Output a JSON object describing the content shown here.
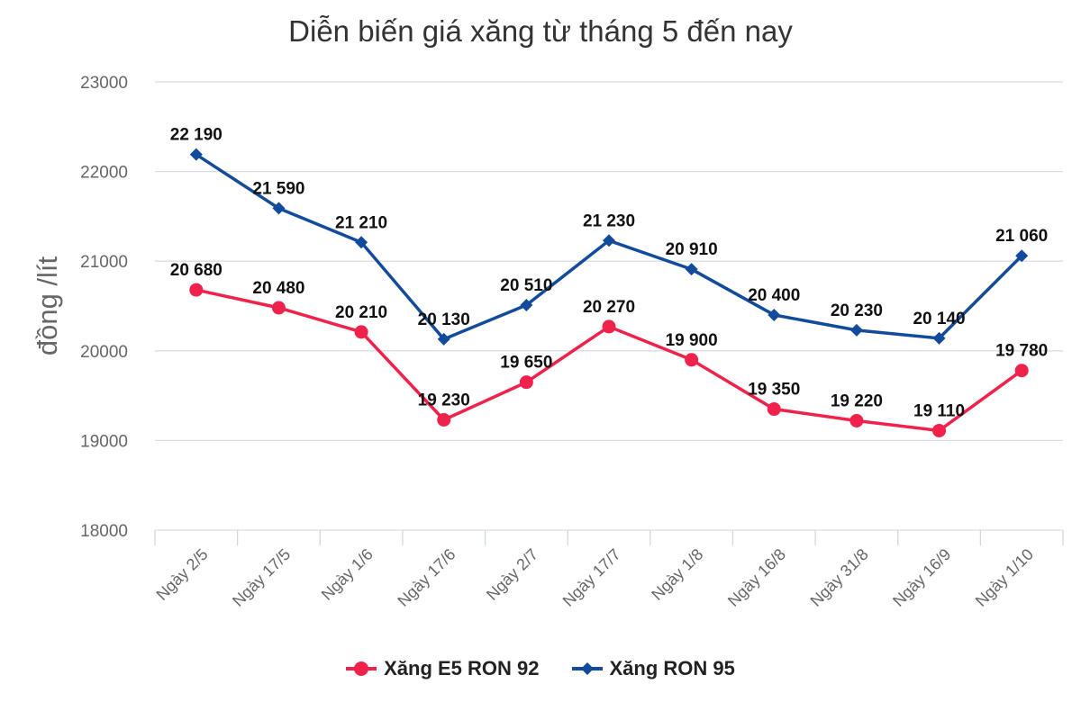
{
  "chart_data": {
    "type": "line",
    "title": "Diễn biến giá xăng từ tháng 5 đến nay",
    "xlabel": "",
    "ylabel": "đồng /lít",
    "ylim": [
      18000,
      23000
    ],
    "yticks": [
      "18000",
      "19000",
      "20000",
      "21000",
      "22000",
      "23000"
    ],
    "grid": true,
    "legend": "bottom",
    "categories": [
      "Ngày 2/5",
      "Ngày 17/5",
      "Ngày 1/6",
      "Ngày 17/6",
      "Ngày 2/7",
      "Ngày 17/7",
      "Ngày 1/8",
      "Ngày 16/8",
      "Ngày 31/8",
      "Ngày 16/9",
      "Ngày 1/10"
    ],
    "series": [
      {
        "name": "Xăng E5 RON 92",
        "color": "#f0224b",
        "marker": "circle",
        "values": [
          20680,
          20480,
          20210,
          19230,
          19650,
          20270,
          19900,
          19350,
          19220,
          19110,
          19780
        ],
        "labels": [
          "20 680",
          "20 480",
          "20 210",
          "19 230",
          "19 650",
          "20 270",
          "19 900",
          "19 350",
          "19 220",
          "19 110",
          "19 780"
        ]
      },
      {
        "name": "Xăng RON 95",
        "color": "#124b9c",
        "marker": "diamond",
        "values": [
          22190,
          21590,
          21210,
          20130,
          20510,
          21230,
          20910,
          20400,
          20230,
          20140,
          21060
        ],
        "labels": [
          "22 190",
          "21 590",
          "21 210",
          "20 130",
          "20 510",
          "21 230",
          "20 910",
          "20 400",
          "20 230",
          "20 140",
          "21 060"
        ]
      }
    ]
  }
}
